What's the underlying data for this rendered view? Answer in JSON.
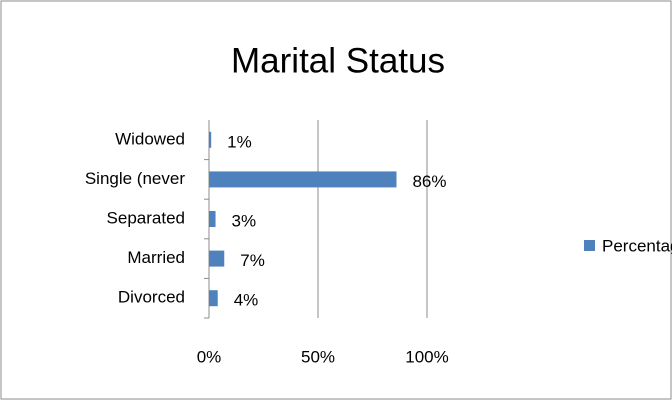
{
  "chart_data": {
    "type": "bar",
    "orientation": "horizontal",
    "title": "Marital Status",
    "categories": [
      "Divorced",
      "Married",
      "Separated",
      "Single (never",
      "Widowed"
    ],
    "series": [
      {
        "name": "Percentage",
        "color": "#4f81bd",
        "values": [
          4,
          7,
          3,
          86,
          1
        ],
        "value_labels": [
          "4%",
          "7%",
          "3%",
          "86%",
          "1%"
        ]
      }
    ],
    "xlim": [
      0,
      100
    ],
    "xticks": [
      {
        "value": 0,
        "label": "0%"
      },
      {
        "value": 50,
        "label": "50%"
      },
      {
        "value": 100,
        "label": "100%"
      }
    ],
    "grid": true,
    "legend": "right"
  }
}
